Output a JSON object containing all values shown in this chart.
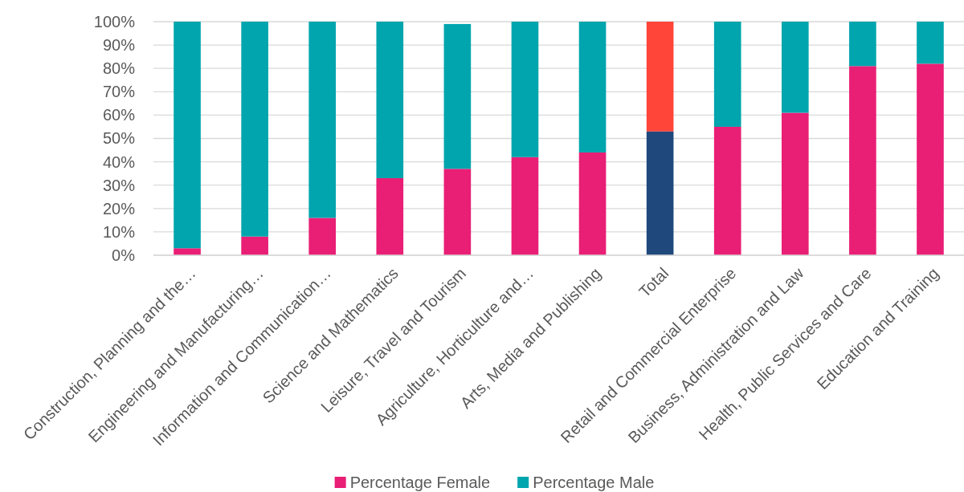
{
  "chart_data": {
    "type": "bar",
    "stacked": true,
    "categories": [
      "Construction, Planning and the…",
      "Engineering and Manufacturing…",
      "Information and Communication…",
      "Science and Mathematics",
      "Leisure, Travel and Tourism",
      "Agriculture, Horticulture and…",
      "Arts, Media and Publishing",
      "Total",
      "Retail and Commercial Enterprise",
      "Business, Administration and Law",
      "Health, Public Services and Care",
      "Education and Training"
    ],
    "series": [
      {
        "name": "Percentage Female",
        "color": "#e91e75",
        "colors": [
          "#e91e75",
          "#e91e75",
          "#e91e75",
          "#e91e75",
          "#e91e75",
          "#e91e75",
          "#e91e75",
          "#1f497c",
          "#e91e75",
          "#e91e75",
          "#e91e75",
          "#e91e75"
        ],
        "values": [
          3,
          8,
          16,
          33,
          37,
          42,
          44,
          53,
          55,
          61,
          81,
          82
        ]
      },
      {
        "name": "Percentage Male",
        "color": "#00a5ad",
        "colors": [
          "#00a5ad",
          "#00a5ad",
          "#00a5ad",
          "#00a5ad",
          "#00a5ad",
          "#00a5ad",
          "#00a5ad",
          "#ff4539",
          "#00a5ad",
          "#00a5ad",
          "#00a5ad",
          "#00a5ad"
        ],
        "values": [
          97,
          92,
          84,
          67,
          62,
          58,
          56,
          47,
          45,
          39,
          19,
          18
        ]
      }
    ],
    "ylim": [
      0,
      100
    ],
    "yticks": [
      {
        "value": 0,
        "label": "0%"
      },
      {
        "value": 10,
        "label": "10%"
      },
      {
        "value": 20,
        "label": "20%"
      },
      {
        "value": 30,
        "label": "30%"
      },
      {
        "value": 40,
        "label": "40%"
      },
      {
        "value": 50,
        "label": "50%"
      },
      {
        "value": 60,
        "label": "60%"
      },
      {
        "value": 70,
        "label": "70%"
      },
      {
        "value": 80,
        "label": "80%"
      },
      {
        "value": 90,
        "label": "90%"
      },
      {
        "value": 100,
        "label": "100%"
      }
    ],
    "grid": "y",
    "legend": "bottom"
  }
}
